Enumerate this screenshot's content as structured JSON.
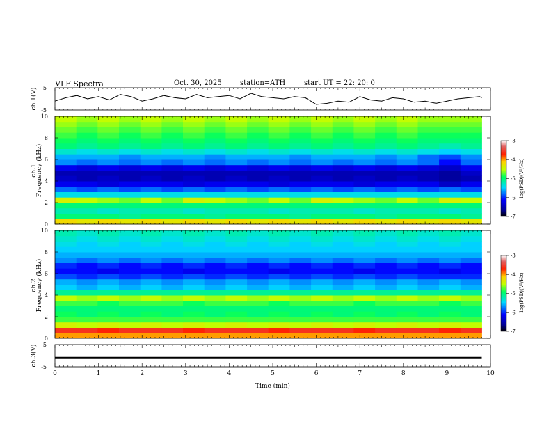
{
  "header": {
    "title": "VLF  Spectra",
    "date": "Oct. 30, 2025",
    "station": "station=ATH",
    "start": "start  UT  =    22: 20: 0"
  },
  "panels": {
    "ch1v": {
      "ylabel": "ch.1(V)",
      "ticks": [
        "5",
        "-5"
      ]
    },
    "spec1": {
      "ylabel_top": "ch.1",
      "ylabel": "Frequency (kHz)",
      "ticks": [
        "10",
        "8",
        "6",
        "4",
        "2",
        "0"
      ]
    },
    "spec2": {
      "ylabel_top": "ch.2",
      "ylabel": "Frequency (kHz)",
      "ticks": [
        "10",
        "8",
        "6",
        "4",
        "2",
        "0"
      ]
    },
    "ch3v": {
      "ylabel": "ch.3(V)",
      "ticks": [
        "5",
        "-5"
      ]
    }
  },
  "x_axis": {
    "label": "Time  (min)",
    "ticks": [
      "0",
      "1",
      "2",
      "3",
      "4",
      "5",
      "6",
      "7",
      "8",
      "9",
      "10"
    ]
  },
  "colorbars": [
    {
      "label": "log(PSD)(V²/Hz)",
      "ticks": [
        "-3",
        "-4",
        "-5",
        "-6",
        "-7"
      ]
    },
    {
      "label": "log(PSD)(V²/Hz)",
      "ticks": [
        "-3",
        "-4",
        "-5",
        "-6",
        "-7"
      ]
    }
  ],
  "colors": {
    "ink": "#000000",
    "background": "#ffffff"
  },
  "chart_data": [
    {
      "type": "line",
      "title": "VLF  Spectra",
      "ylabel": "ch.1(V)",
      "xlabel": "Time  (min)",
      "xlim": [
        0,
        10
      ],
      "ylim": [
        -5,
        5
      ],
      "series": [
        {
          "x": [
            0,
            0.25,
            0.5,
            0.75,
            1.0,
            1.25,
            1.5,
            1.75,
            2.0,
            2.25,
            2.5,
            2.75,
            3.0,
            3.25,
            3.5,
            3.75,
            4.0,
            4.25,
            4.5,
            4.75,
            5.0,
            5.25,
            5.5,
            5.75,
            6.0,
            6.25,
            6.5,
            6.75,
            7.0,
            7.25,
            7.5,
            7.75,
            8.0,
            8.25,
            8.5,
            8.75,
            9.0,
            9.25,
            9.5,
            9.75,
            9.8
          ],
          "values": [
            -1.0,
            0.5,
            1.5,
            0.0,
            1.0,
            -0.5,
            2.0,
            1.0,
            -1.0,
            0.0,
            1.5,
            0.5,
            0.0,
            2.0,
            0.5,
            1.0,
            1.5,
            0.0,
            2.5,
            1.0,
            0.5,
            0.0,
            1.0,
            0.5,
            -2.5,
            -2.0,
            -1.0,
            -1.5,
            1.0,
            -0.5,
            -1.0,
            0.5,
            0.0,
            -1.5,
            -1.0,
            -2.0,
            -1.0,
            0.0,
            0.5,
            1.0,
            0.5
          ]
        }
      ]
    },
    {
      "type": "heatmap",
      "ylabel": "Frequency (kHz)",
      "xlabel": "Time  (min)",
      "xlim": [
        0,
        10
      ],
      "ylim": [
        0,
        10
      ],
      "zlim": [
        -7,
        -3
      ],
      "zlabel": "log(PSD)(V²/Hz)",
      "x": [
        0,
        0.5,
        1.0,
        1.5,
        2.0,
        2.5,
        3.0,
        3.5,
        4.0,
        4.5,
        5.0,
        5.5,
        6.0,
        6.5,
        7.0,
        7.5,
        8.0,
        8.5,
        9.0,
        9.5
      ],
      "y": [
        0.25,
        0.75,
        1.25,
        1.75,
        2.25,
        2.75,
        3.25,
        3.75,
        4.25,
        4.75,
        5.25,
        5.75,
        6.25,
        6.75,
        7.25,
        7.75,
        8.25,
        8.75,
        9.25,
        9.75
      ],
      "z": [
        [
          -4.2,
          -4.3,
          -4.2,
          -4.3,
          -4.2,
          -4.3,
          -4.2,
          -4.3,
          -4.2,
          -4.3,
          -4.2,
          -4.3,
          -4.2,
          -4.3,
          -4.2,
          -4.3,
          -4.2,
          -4.3,
          -4.2,
          -4.3
        ],
        [
          -5.0,
          -5.0,
          -5.0,
          -5.1,
          -5.0,
          -5.0,
          -5.0,
          -5.1,
          -5.0,
          -5.0,
          -5.0,
          -5.1,
          -5.0,
          -5.0,
          -5.0,
          -5.1,
          -5.0,
          -5.0,
          -5.0,
          -5.1
        ],
        [
          -5.2,
          -5.2,
          -5.3,
          -5.2,
          -5.2,
          -5.2,
          -5.3,
          -5.2,
          -5.2,
          -5.2,
          -5.3,
          -5.2,
          -5.2,
          -5.2,
          -5.3,
          -5.2,
          -5.2,
          -5.2,
          -5.3,
          -5.2
        ],
        [
          -5.0,
          -5.0,
          -5.0,
          -5.0,
          -5.0,
          -5.0,
          -5.0,
          -5.0,
          -5.0,
          -5.0,
          -5.0,
          -5.0,
          -5.0,
          -5.0,
          -5.0,
          -5.0,
          -5.0,
          -5.0,
          -5.0,
          -5.0
        ],
        [
          -4.4,
          -4.5,
          -4.6,
          -4.7,
          -4.5,
          -4.7,
          -4.4,
          -4.5,
          -4.6,
          -4.7,
          -4.5,
          -4.7,
          -4.4,
          -4.5,
          -4.6,
          -4.7,
          -4.5,
          -4.7,
          -4.4,
          -4.5
        ],
        [
          -5.4,
          -5.4,
          -5.4,
          -5.4,
          -5.4,
          -5.4,
          -5.4,
          -5.4,
          -5.4,
          -5.4,
          -5.4,
          -5.4,
          -5.4,
          -5.4,
          -5.4,
          -5.4,
          -5.4,
          -5.4,
          -5.4,
          -5.4
        ],
        [
          -5.8,
          -5.9,
          -5.8,
          -5.9,
          -5.8,
          -5.9,
          -5.8,
          -5.9,
          -5.8,
          -5.9,
          -5.8,
          -5.9,
          -5.8,
          -5.9,
          -5.8,
          -5.9,
          -5.8,
          -5.9,
          -5.8,
          -5.9
        ],
        [
          -6.2,
          -6.2,
          -6.3,
          -6.2,
          -6.2,
          -6.2,
          -6.3,
          -6.2,
          -6.2,
          -6.2,
          -6.3,
          -6.2,
          -6.2,
          -6.2,
          -6.3,
          -6.2,
          -6.2,
          -6.2,
          -6.4,
          -6.2
        ],
        [
          -6.4,
          -6.5,
          -6.4,
          -6.5,
          -6.4,
          -6.5,
          -6.4,
          -6.5,
          -6.4,
          -6.5,
          -6.4,
          -6.5,
          -6.4,
          -6.5,
          -6.4,
          -6.5,
          -6.4,
          -6.5,
          -6.6,
          -6.5
        ],
        [
          -6.5,
          -6.5,
          -6.5,
          -6.5,
          -6.5,
          -6.5,
          -6.5,
          -6.5,
          -6.5,
          -6.5,
          -6.5,
          -6.5,
          -6.5,
          -6.5,
          -6.5,
          -6.5,
          -6.5,
          -6.5,
          -6.6,
          -6.4
        ],
        [
          -6.2,
          -6.3,
          -6.2,
          -6.3,
          -6.2,
          -6.3,
          -6.2,
          -6.3,
          -6.2,
          -6.3,
          -6.2,
          -6.3,
          -6.2,
          -6.3,
          -6.2,
          -6.3,
          -6.2,
          -6.3,
          -6.4,
          -6.2
        ],
        [
          -5.7,
          -5.8,
          -5.7,
          -5.8,
          -5.7,
          -5.8,
          -5.7,
          -5.8,
          -5.7,
          -5.8,
          -5.7,
          -5.8,
          -5.7,
          -5.8,
          -5.7,
          -5.8,
          -5.7,
          -5.8,
          -6.1,
          -5.8
        ],
        [
          -5.6,
          -5.6,
          -5.6,
          -5.7,
          -5.6,
          -5.6,
          -5.6,
          -5.7,
          -5.6,
          -5.6,
          -5.6,
          -5.7,
          -5.6,
          -5.6,
          -5.6,
          -5.7,
          -5.6,
          -5.8,
          -5.9,
          -5.7
        ],
        [
          -5.3,
          -5.4,
          -5.3,
          -5.4,
          -5.3,
          -5.4,
          -5.3,
          -5.4,
          -5.3,
          -5.4,
          -5.3,
          -5.4,
          -5.3,
          -5.4,
          -5.3,
          -5.4,
          -5.3,
          -5.4,
          -5.5,
          -5.4
        ],
        [
          -5.0,
          -5.1,
          -5.0,
          -5.1,
          -5.0,
          -5.1,
          -5.0,
          -5.1,
          -5.0,
          -5.1,
          -5.0,
          -5.1,
          -5.0,
          -5.1,
          -5.0,
          -5.1,
          -5.0,
          -5.1,
          -5.2,
          -5.1
        ],
        [
          -4.9,
          -5.0,
          -4.9,
          -5.0,
          -4.9,
          -5.0,
          -4.9,
          -5.0,
          -4.9,
          -5.0,
          -4.9,
          -5.0,
          -4.9,
          -5.0,
          -4.9,
          -5.0,
          -4.9,
          -5.0,
          -5.0,
          -5.0
        ],
        [
          -4.8,
          -4.9,
          -4.8,
          -4.9,
          -4.8,
          -4.9,
          -4.8,
          -4.9,
          -4.8,
          -4.9,
          -4.8,
          -4.9,
          -4.8,
          -4.9,
          -4.8,
          -4.9,
          -4.8,
          -4.9,
          -4.9,
          -4.9
        ],
        [
          -4.7,
          -4.8,
          -4.7,
          -4.8,
          -4.7,
          -4.8,
          -4.7,
          -4.8,
          -4.7,
          -4.8,
          -4.7,
          -4.8,
          -4.7,
          -4.8,
          -4.7,
          -4.8,
          -4.7,
          -4.8,
          -4.8,
          -4.8
        ],
        [
          -4.6,
          -4.7,
          -4.6,
          -4.7,
          -4.6,
          -4.7,
          -4.6,
          -4.7,
          -4.6,
          -4.7,
          -4.6,
          -4.7,
          -4.6,
          -4.7,
          -4.6,
          -4.7,
          -4.6,
          -4.7,
          -4.7,
          -4.7
        ],
        [
          -4.5,
          -4.6,
          -4.5,
          -4.6,
          -4.5,
          -4.6,
          -4.5,
          -4.6,
          -4.5,
          -4.6,
          -4.5,
          -4.6,
          -4.5,
          -4.6,
          -4.5,
          -4.6,
          -4.5,
          -4.6,
          -4.6,
          -4.6
        ]
      ]
    },
    {
      "type": "heatmap",
      "ylabel": "Frequency (kHz)",
      "xlabel": "Time  (min)",
      "xlim": [
        0,
        10
      ],
      "ylim": [
        0,
        10
      ],
      "zlim": [
        -7,
        -3
      ],
      "zlabel": "log(PSD)(V²/Hz)",
      "x": [
        0,
        0.5,
        1.0,
        1.5,
        2.0,
        2.5,
        3.0,
        3.5,
        4.0,
        4.5,
        5.0,
        5.5,
        6.0,
        6.5,
        7.0,
        7.5,
        8.0,
        8.5,
        9.0,
        9.5
      ],
      "y": [
        0.25,
        0.75,
        1.25,
        1.75,
        2.25,
        2.75,
        3.25,
        3.75,
        4.25,
        4.75,
        5.25,
        5.75,
        6.25,
        6.75,
        7.25,
        7.75,
        8.25,
        8.75,
        9.25,
        9.75
      ],
      "z": [
        [
          -4.0,
          -4.0,
          -4.0,
          -4.0,
          -4.0,
          -4.0,
          -4.0,
          -4.0,
          -4.0,
          -4.0,
          -4.0,
          -4.0,
          -4.0,
          -4.0,
          -4.0,
          -4.0,
          -4.0,
          -4.0,
          -4.0,
          -4.0
        ],
        [
          -3.6,
          -3.6,
          -3.7,
          -3.6,
          -3.6,
          -3.6,
          -3.7,
          -3.6,
          -3.6,
          -3.6,
          -3.7,
          -3.6,
          -3.6,
          -3.6,
          -3.7,
          -3.6,
          -3.6,
          -3.6,
          -3.7,
          -3.6
        ],
        [
          -4.4,
          -4.5,
          -4.4,
          -4.5,
          -4.4,
          -4.5,
          -4.4,
          -4.5,
          -4.4,
          -4.5,
          -4.4,
          -4.5,
          -4.4,
          -4.5,
          -4.4,
          -4.5,
          -4.4,
          -4.5,
          -4.4,
          -4.5
        ],
        [
          -4.8,
          -4.8,
          -4.8,
          -4.8,
          -4.8,
          -4.8,
          -4.8,
          -4.8,
          -4.8,
          -4.8,
          -4.8,
          -4.8,
          -4.8,
          -4.8,
          -4.8,
          -4.8,
          -4.8,
          -4.8,
          -4.8,
          -4.8
        ],
        [
          -4.9,
          -5.0,
          -4.9,
          -5.0,
          -4.9,
          -5.0,
          -4.9,
          -5.0,
          -4.9,
          -5.0,
          -4.9,
          -5.0,
          -4.9,
          -5.0,
          -4.9,
          -5.0,
          -4.9,
          -5.0,
          -4.9,
          -5.0
        ],
        [
          -5.0,
          -5.0,
          -5.0,
          -5.0,
          -5.0,
          -5.0,
          -5.0,
          -5.0,
          -5.0,
          -5.0,
          -5.0,
          -5.0,
          -5.0,
          -5.0,
          -5.0,
          -5.0,
          -5.0,
          -5.0,
          -5.0,
          -5.0
        ],
        [
          -4.8,
          -4.8,
          -4.9,
          -4.8,
          -4.8,
          -4.8,
          -4.9,
          -4.8,
          -4.8,
          -4.8,
          -4.9,
          -4.8,
          -4.8,
          -4.8,
          -4.9,
          -4.8,
          -4.8,
          -4.8,
          -4.9,
          -4.8
        ],
        [
          -4.5,
          -4.6,
          -4.5,
          -4.6,
          -4.5,
          -4.6,
          -4.5,
          -4.6,
          -4.5,
          -4.6,
          -4.5,
          -4.6,
          -4.5,
          -4.6,
          -4.5,
          -4.6,
          -4.5,
          -4.6,
          -4.5,
          -4.6
        ],
        [
          -5.1,
          -5.1,
          -5.1,
          -5.1,
          -5.1,
          -5.1,
          -5.1,
          -5.1,
          -5.1,
          -5.1,
          -5.1,
          -5.1,
          -5.1,
          -5.1,
          -5.1,
          -5.1,
          -5.1,
          -5.1,
          -5.1,
          -5.1
        ],
        [
          -5.5,
          -5.6,
          -5.5,
          -5.6,
          -5.5,
          -5.6,
          -5.5,
          -5.6,
          -5.5,
          -5.6,
          -5.5,
          -5.6,
          -5.5,
          -5.6,
          -5.5,
          -5.6,
          -5.5,
          -5.6,
          -5.5,
          -5.6
        ],
        [
          -5.6,
          -5.7,
          -5.6,
          -5.7,
          -5.6,
          -5.7,
          -5.6,
          -5.7,
          -5.6,
          -5.7,
          -5.6,
          -5.7,
          -5.6,
          -5.7,
          -5.6,
          -5.7,
          -5.6,
          -5.7,
          -5.6,
          -5.7
        ],
        [
          -5.9,
          -6.0,
          -5.9,
          -6.0,
          -5.9,
          -6.0,
          -5.9,
          -6.0,
          -5.9,
          -6.0,
          -5.9,
          -6.0,
          -5.9,
          -6.0,
          -5.9,
          -6.0,
          -5.9,
          -6.0,
          -6.0,
          -6.0
        ],
        [
          -6.1,
          -6.1,
          -6.2,
          -6.1,
          -6.1,
          -6.1,
          -6.2,
          -6.1,
          -6.1,
          -6.1,
          -6.2,
          -6.1,
          -6.1,
          -6.1,
          -6.2,
          -6.1,
          -6.1,
          -6.1,
          -6.2,
          -6.1
        ],
        [
          -6.0,
          -6.1,
          -6.0,
          -6.1,
          -6.0,
          -6.1,
          -6.0,
          -6.1,
          -6.0,
          -6.1,
          -6.0,
          -6.1,
          -6.0,
          -6.1,
          -6.0,
          -6.1,
          -6.0,
          -6.1,
          -6.0,
          -6.1
        ],
        [
          -5.7,
          -5.8,
          -5.7,
          -5.8,
          -5.7,
          -5.8,
          -5.7,
          -5.8,
          -5.7,
          -5.8,
          -5.7,
          -5.8,
          -5.7,
          -5.8,
          -5.7,
          -5.8,
          -5.7,
          -5.8,
          -5.7,
          -5.8
        ],
        [
          -5.6,
          -5.6,
          -5.6,
          -5.6,
          -5.6,
          -5.6,
          -5.6,
          -5.6,
          -5.6,
          -5.6,
          -5.6,
          -5.6,
          -5.6,
          -5.6,
          -5.6,
          -5.6,
          -5.6,
          -5.6,
          -5.6,
          -5.6
        ],
        [
          -5.5,
          -5.5,
          -5.5,
          -5.5,
          -5.5,
          -5.5,
          -5.5,
          -5.5,
          -5.5,
          -5.5,
          -5.5,
          -5.5,
          -5.5,
          -5.5,
          -5.5,
          -5.5,
          -5.5,
          -5.5,
          -5.5,
          -5.5
        ],
        [
          -5.4,
          -5.5,
          -5.4,
          -5.5,
          -5.4,
          -5.5,
          -5.4,
          -5.5,
          -5.4,
          -5.5,
          -5.4,
          -5.5,
          -5.4,
          -5.5,
          -5.4,
          -5.5,
          -5.4,
          -5.5,
          -5.4,
          -5.5
        ],
        [
          -5.3,
          -5.4,
          -5.3,
          -5.4,
          -5.3,
          -5.4,
          -5.3,
          -5.4,
          -5.3,
          -5.4,
          -5.3,
          -5.4,
          -5.3,
          -5.4,
          -5.3,
          -5.4,
          -5.3,
          -5.4,
          -5.3,
          -5.4
        ],
        [
          -5.2,
          -5.3,
          -5.2,
          -5.3,
          -5.2,
          -5.3,
          -5.2,
          -5.3,
          -5.2,
          -5.3,
          -5.2,
          -5.3,
          -5.2,
          -5.3,
          -5.2,
          -5.3,
          -5.2,
          -5.3,
          -5.2,
          -5.3
        ]
      ]
    },
    {
      "type": "line",
      "ylabel": "ch.3(V)",
      "xlabel": "Time  (min)",
      "xlim": [
        0,
        10
      ],
      "ylim": [
        -5,
        5
      ],
      "series": [
        {
          "x": [
            0,
            9.8
          ],
          "values": [
            -1.0,
            -1.0
          ]
        }
      ]
    }
  ]
}
